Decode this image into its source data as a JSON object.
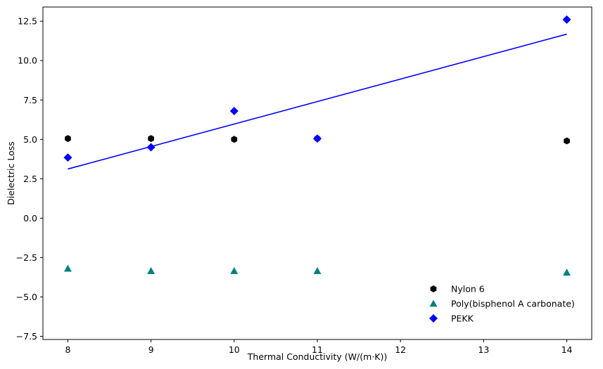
{
  "chart_data": {
    "type": "scatter",
    "title": "",
    "xlabel": "Thermal Conductivity (W/(m·K))",
    "ylabel": "Dielectric Loss",
    "xlim": [
      7.7,
      14.3
    ],
    "ylim": [
      -7.7,
      13.4
    ],
    "xticks": [
      8,
      9,
      10,
      11,
      12,
      13,
      14
    ],
    "xtick_labels": [
      "8",
      "9",
      "10",
      "11",
      "12",
      "13",
      "14"
    ],
    "yticks": [
      -7.5,
      -5.0,
      -2.5,
      0.0,
      2.5,
      5.0,
      7.5,
      10.0,
      12.5
    ],
    "ytick_labels": [
      "−7.5",
      "−5.0",
      "−2.5",
      "0.0",
      "2.5",
      "5.0",
      "7.5",
      "10.0",
      "12.5"
    ],
    "grid": false,
    "legend_position": "bottom-right",
    "series": [
      {
        "name": "Nylon 6",
        "marker": "hexagon",
        "color": "#000000",
        "x": [
          8,
          9,
          10,
          11,
          14
        ],
        "y": [
          5.05,
          5.05,
          5.0,
          5.05,
          4.9
        ]
      },
      {
        "name": "Poly(bisphenol A carbonate)",
        "marker": "triangle",
        "color": "#008080",
        "x": [
          8,
          9,
          10,
          11,
          14
        ],
        "y": [
          -3.2,
          -3.35,
          -3.35,
          -3.35,
          -3.45
        ]
      },
      {
        "name": "PEKK",
        "marker": "diamond",
        "color": "#0000ff",
        "x": [
          8,
          9,
          10,
          11,
          14
        ],
        "y": [
          3.85,
          4.5,
          6.8,
          5.05,
          12.6
        ]
      }
    ],
    "trend_line": {
      "color": "#0000ff",
      "x": [
        8,
        14
      ],
      "y": [
        3.12,
        11.68
      ]
    }
  }
}
